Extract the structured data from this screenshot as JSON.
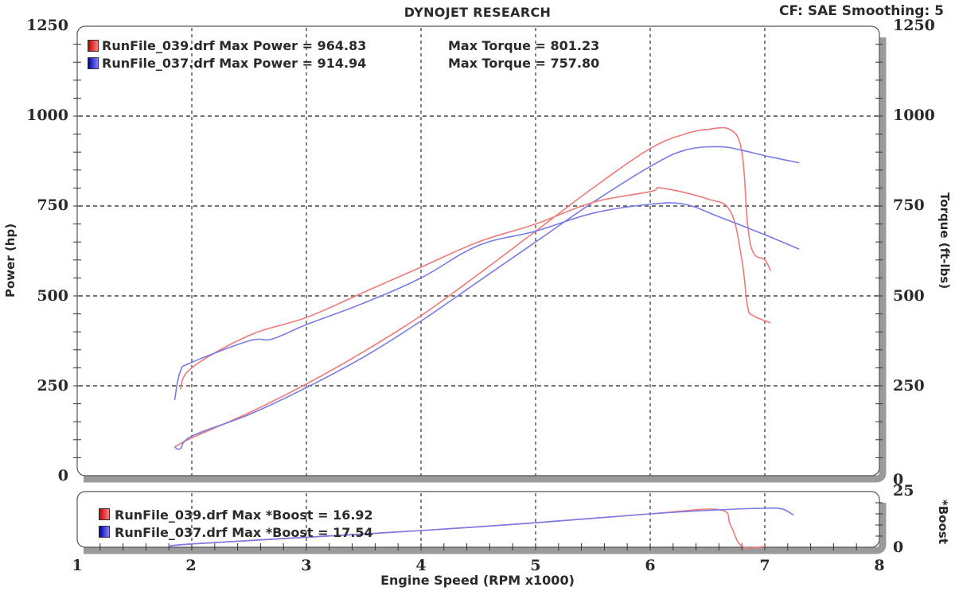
{
  "header": {
    "title": "DYNOJET RESEARCH",
    "cf_info": "CF: SAE  Smoothing: 5"
  },
  "axes": {
    "x_label": "Engine Speed (RPM x1000)",
    "x_ticks": [
      "1",
      "2",
      "3",
      "4",
      "5",
      "6",
      "7",
      "8"
    ],
    "y_left_label": "Power (hp)",
    "y_left_ticks": [
      "1250",
      "1000",
      "750",
      "500",
      "250",
      "0"
    ],
    "y_right_label": "Torque (ft-lbs)",
    "y_right_ticks": [
      "1250",
      "1000",
      "750",
      "500",
      "250",
      "0"
    ],
    "boost_label": "*Boost",
    "boost_ticks": [
      "25",
      "0"
    ]
  },
  "legend_main": [
    {
      "file": "RunFile_039.drf",
      "power_text": "RunFile_039.drf Max Power = 964.83",
      "torque_text": "Max Torque = 801.23",
      "color": "#e02020"
    },
    {
      "file": "RunFile_037.drf",
      "power_text": "RunFile_037.drf Max Power = 914.94",
      "torque_text": "Max Torque = 757.80",
      "color": "#2020d0"
    }
  ],
  "legend_boost": [
    {
      "text": "RunFile_039.drf Max *Boost = 16.92",
      "color": "#e02020"
    },
    {
      "text": "RunFile_037.drf Max *Boost = 17.54",
      "color": "#2020d0"
    }
  ],
  "colors": {
    "run039": "#ee7a7a",
    "run037": "#7a7ae6",
    "frame_shadow": "#9a9a9a",
    "grid": "#333333"
  },
  "chart_data": [
    {
      "type": "line",
      "title": "DYNOJET RESEARCH",
      "subtitle": "CF: SAE  Smoothing: 5",
      "xlabel": "Engine Speed (RPM x1000)",
      "ylabel": "Power (hp)",
      "y2label": "Torque (ft-lbs)",
      "xlim": [
        1,
        8
      ],
      "ylim": [
        0,
        1250
      ],
      "grid": true,
      "legend_position": "top-left inside",
      "series": [
        {
          "name": "RunFile_039.drf Power",
          "color": "red",
          "max": 964.83,
          "x": [
            1.85,
            2.0,
            2.5,
            3.0,
            3.5,
            4.0,
            4.5,
            5.0,
            5.5,
            6.0,
            6.3,
            6.5,
            6.7,
            6.8,
            6.85,
            6.9,
            7.0,
            7.05
          ],
          "y": [
            80,
            105,
            175,
            255,
            345,
            445,
            560,
            680,
            800,
            910,
            950,
            963,
            962,
            900,
            700,
            620,
            600,
            570
          ]
        },
        {
          "name": "RunFile_037.drf Power",
          "color": "blue",
          "max": 914.94,
          "x": [
            1.85,
            1.9,
            2.0,
            2.5,
            3.0,
            3.5,
            4.0,
            4.5,
            5.0,
            5.5,
            6.0,
            6.3,
            6.6,
            6.8,
            7.0,
            7.3
          ],
          "y": [
            80,
            75,
            110,
            170,
            245,
            330,
            430,
            540,
            650,
            760,
            860,
            905,
            915,
            905,
            890,
            870
          ]
        },
        {
          "name": "RunFile_039.drf Torque",
          "color": "red",
          "max": 801.23,
          "x": [
            1.9,
            2.0,
            2.5,
            3.0,
            3.5,
            4.0,
            4.5,
            5.0,
            5.5,
            6.0,
            6.1,
            6.5,
            6.7,
            6.8,
            6.85,
            6.9,
            7.05
          ],
          "y": [
            240,
            300,
            390,
            440,
            510,
            580,
            650,
            700,
            760,
            790,
            800,
            770,
            735,
            600,
            470,
            445,
            425
          ]
        },
        {
          "name": "RunFile_037.drf Torque",
          "color": "blue",
          "max": 757.8,
          "x": [
            1.85,
            1.9,
            2.0,
            2.5,
            2.7,
            3.0,
            3.5,
            4.0,
            4.5,
            5.0,
            5.5,
            6.0,
            6.3,
            6.6,
            7.0,
            7.3
          ],
          "y": [
            210,
            290,
            315,
            375,
            380,
            420,
            480,
            550,
            640,
            680,
            730,
            755,
            755,
            720,
            670,
            630
          ]
        }
      ]
    },
    {
      "type": "line",
      "title": "Boost",
      "xlabel": "Engine Speed (RPM x1000)",
      "ylabel": "*Boost",
      "xlim": [
        1,
        8
      ],
      "ylim": [
        0,
        25
      ],
      "grid": true,
      "series": [
        {
          "name": "RunFile_039.drf *Boost",
          "color": "red",
          "max": 16.92,
          "x": [
            1.8,
            2.0,
            3.0,
            4.0,
            5.0,
            6.0,
            6.6,
            6.7,
            6.8,
            7.0
          ],
          "y": [
            0.5,
            1.5,
            4.5,
            7.5,
            11,
            15,
            16.9,
            10,
            0.5,
            0.3
          ]
        },
        {
          "name": "RunFile_037.drf *Boost",
          "color": "blue",
          "max": 17.54,
          "x": [
            1.8,
            2.0,
            3.0,
            4.0,
            5.0,
            6.0,
            6.6,
            7.0,
            7.15,
            7.25
          ],
          "y": [
            0.5,
            1.5,
            4.5,
            7.5,
            11,
            15,
            16.8,
            17.5,
            17.2,
            14.5
          ]
        }
      ]
    }
  ]
}
